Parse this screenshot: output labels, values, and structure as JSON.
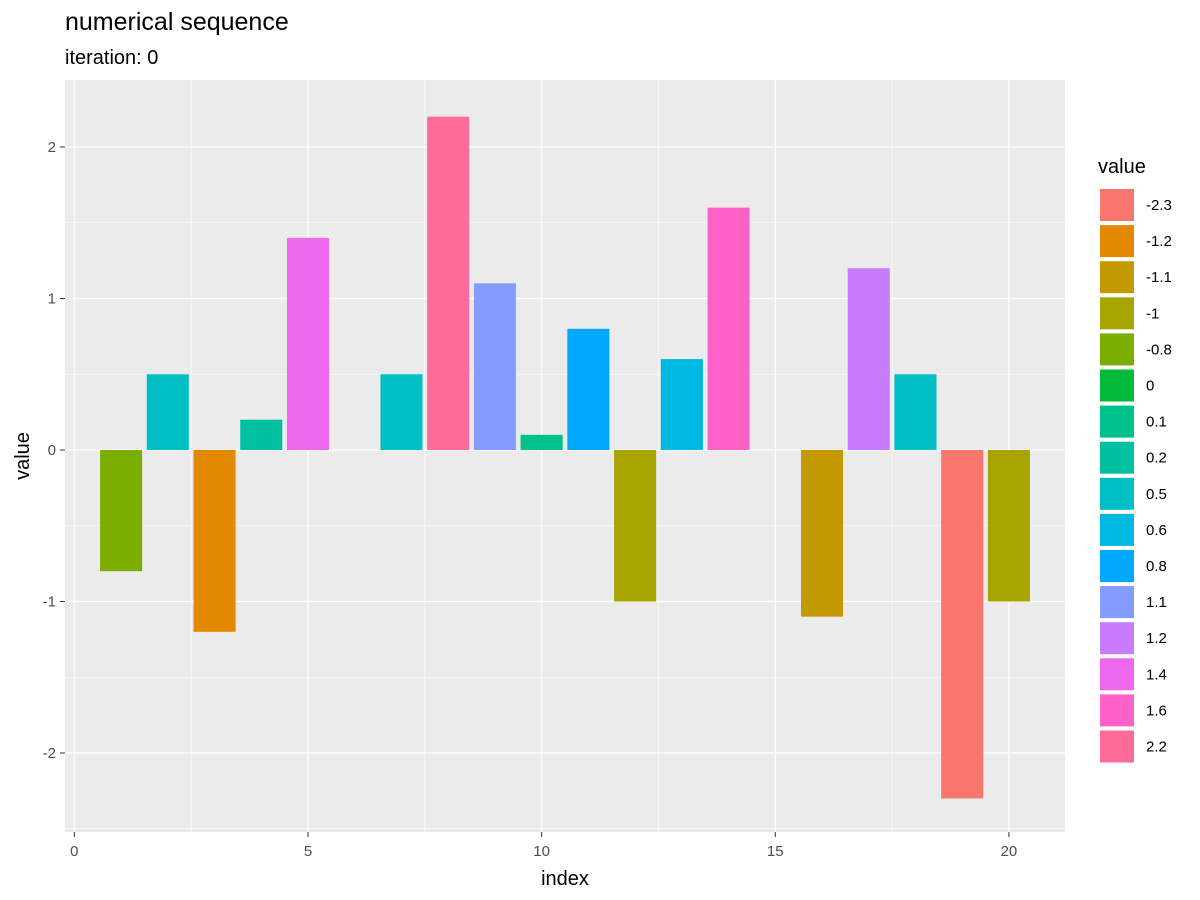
{
  "chart_data": {
    "type": "bar",
    "title": "numerical sequence",
    "subtitle": "iteration: 0",
    "xlabel": "index",
    "ylabel": "value",
    "xlim": [
      0,
      21
    ],
    "ylim": [
      -2.5,
      2.4
    ],
    "x_ticks": [
      0,
      5,
      10,
      15,
      20
    ],
    "y_ticks": [
      -2,
      -1,
      0,
      1,
      2
    ],
    "grid": true,
    "legend_position": "right",
    "legend_title": "value",
    "x": [
      1,
      2,
      3,
      4,
      5,
      7,
      8,
      9,
      10,
      11,
      12,
      13,
      14,
      16,
      17,
      18,
      19,
      20
    ],
    "values": [
      -0.8,
      0.5,
      -1.2,
      0.2,
      1.4,
      0.5,
      2.2,
      1.1,
      0.1,
      0.8,
      -1,
      0.6,
      1.6,
      -1.1,
      1.2,
      0.5,
      -2.3,
      -1
    ],
    "legend": [
      {
        "label": "-2.3",
        "color": "#F8766D"
      },
      {
        "label": "-1.2",
        "color": "#E38900"
      },
      {
        "label": "-1.1",
        "color": "#C49A00"
      },
      {
        "label": "-1",
        "color": "#A8A400"
      },
      {
        "label": "-0.8",
        "color": "#7CAE00"
      },
      {
        "label": "0",
        "color": "#00BA38"
      },
      {
        "label": "0.1",
        "color": "#00C08B"
      },
      {
        "label": "0.2",
        "color": "#00C0A0"
      },
      {
        "label": "0.5",
        "color": "#00BFC4"
      },
      {
        "label": "0.6",
        "color": "#00B9E3"
      },
      {
        "label": "0.8",
        "color": "#00A9FF"
      },
      {
        "label": "1.1",
        "color": "#849BFF"
      },
      {
        "label": "1.2",
        "color": "#C77CFF"
      },
      {
        "label": "1.4",
        "color": "#ED68ED"
      },
      {
        "label": "1.6",
        "color": "#FF61C9"
      },
      {
        "label": "2.2",
        "color": "#FF6C99"
      }
    ],
    "panel_color": "#EBEBEB",
    "grid_color": "#FFFFFF"
  }
}
